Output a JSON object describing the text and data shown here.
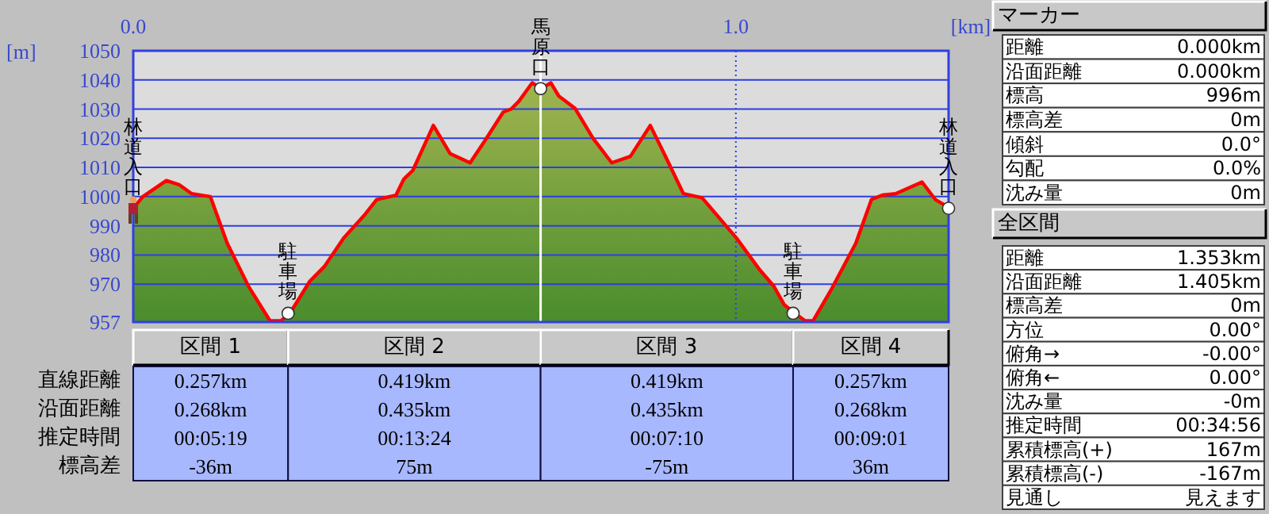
{
  "chart_data": [
    {
      "type": "area",
      "xlabel": "[km]",
      "ylabel": "[m]",
      "xlim": [
        0,
        1.353
      ],
      "ylim": [
        957,
        1050
      ],
      "xticks": [
        {
          "value": 0,
          "label": "0.0"
        },
        {
          "value": 1,
          "label": "1.0"
        }
      ],
      "yticks": [
        957,
        970,
        980,
        990,
        1000,
        1010,
        1020,
        1030,
        1040,
        1050
      ],
      "grid": "y",
      "ref_lines": [
        {
          "axis": "x",
          "value": 0.676,
          "color": "#ffffff",
          "line_style": "solid"
        },
        {
          "axis": "x",
          "value": 1,
          "color": "#2c3ee0",
          "line_style": "dotted"
        }
      ],
      "annotations": [
        {
          "text": "林道入口",
          "x": 0,
          "y": 996
        },
        {
          "text": "駐車場",
          "x": 0.257,
          "y": 960
        },
        {
          "text": "馬原口",
          "x": 0.676,
          "y": 1037
        },
        {
          "text": "駐車場",
          "x": 1.095,
          "y": 960
        },
        {
          "text": "林道入口",
          "x": 1.353,
          "y": 996
        }
      ],
      "series": [
        {
          "type": "scatter",
          "color": "#ffffff",
          "marker": "circle",
          "x": [
            0.257,
            0.676,
            1.095,
            1.353
          ],
          "values": [
            960,
            1037,
            960,
            996
          ]
        },
        {
          "color": "#ff0000",
          "x": [
            0,
            0.016,
            0.055,
            0.077,
            0.097,
            0.128,
            0.156,
            0.192,
            0.227,
            0.245,
            0.26,
            0.293,
            0.317,
            0.35,
            0.385,
            0.404,
            0.436,
            0.449,
            0.464,
            0.498,
            0.526,
            0.559,
            0.583,
            0.614,
            0.627,
            0.64,
            0.662,
            0.677,
            0.693,
            0.706,
            0.733,
            0.763,
            0.794,
            0.825,
            0.858,
            0.882,
            0.913,
            0.944,
            1.001,
            1.04,
            1.063,
            1.08,
            1.098,
            1.115,
            1.128,
            1.159,
            1.199,
            1.225,
            1.243,
            1.265,
            1.309,
            1.331,
            1.353
          ],
          "values": [
            996,
            1000,
            1005.5,
            1004,
            1001,
            1000,
            984,
            969,
            957.4,
            957.4,
            960,
            971,
            976,
            986,
            994,
            999,
            1000.5,
            1006,
            1009,
            1024.4,
            1014.7,
            1011.6,
            1019,
            1029,
            1030,
            1032.7,
            1039,
            1037,
            1039,
            1034.5,
            1030.3,
            1020,
            1011.6,
            1013.8,
            1024.4,
            1014.3,
            1001,
            999.6,
            985.8,
            974.8,
            969.3,
            963,
            960,
            957.4,
            957.4,
            968.4,
            984,
            999,
            1000.5,
            1001,
            1005,
            999,
            996.3
          ]
        }
      ]
    },
    {
      "type": "other",
      "categories": [
        "区間 1",
        "区間 2",
        "区間 3",
        "区間 4"
      ],
      "y_categories": [
        "直線距離",
        "沿面距離",
        "推定時間",
        "標高差"
      ],
      "cell_labels": [
        [
          "0.257km",
          "0.419km",
          "0.419km",
          "0.257km"
        ],
        [
          "0.268km",
          "0.435km",
          "0.435km",
          "0.268km"
        ],
        [
          "00:05:19",
          "00:13:24",
          "00:07:10",
          "00:09:01"
        ],
        [
          "-36m",
          "75m",
          "-75m",
          "36m"
        ]
      ]
    },
    {
      "type": "other",
      "title": "マーカー",
      "y_categories": [
        "距離",
        "沿面距離",
        "標高",
        "標高差",
        "傾斜",
        "勾配",
        "沈み量"
      ],
      "cell_labels": [
        [
          "0.000km"
        ],
        [
          "0.000km"
        ],
        [
          "996m"
        ],
        [
          "0m"
        ],
        [
          "0.0°"
        ],
        [
          "0.0%"
        ],
        [
          "0m"
        ]
      ]
    },
    {
      "type": "other",
      "title": "全区間",
      "y_categories": [
        "距離",
        "沿面距離",
        "標高差",
        "方位",
        "俯角→",
        "俯角←",
        "沈み量",
        "推定時間",
        "累積標高(+)",
        "累積標高(-)",
        "見通し"
      ],
      "cell_labels": [
        [
          "1.353km"
        ],
        [
          "1.405km"
        ],
        [
          "0m"
        ],
        [
          "0.00°"
        ],
        [
          "-0.00°"
        ],
        [
          "0.00°"
        ],
        [
          "-0m"
        ],
        [
          "00:34:56"
        ],
        [
          "167m"
        ],
        [
          "-167m"
        ],
        [
          "見えます"
        ]
      ]
    }
  ]
}
